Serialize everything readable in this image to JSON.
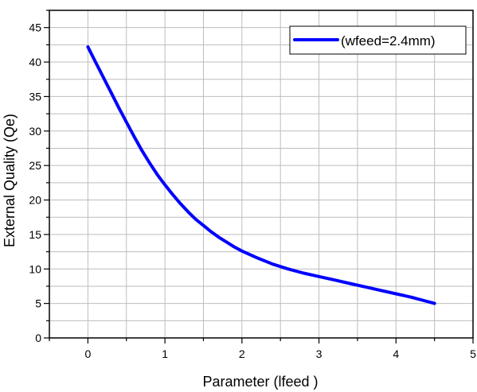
{
  "chart_data": {
    "type": "line",
    "title": "",
    "xlabel": "Parameter (lfeed )",
    "ylabel": "External Quality (Qe)",
    "xlim": [
      -0.5,
      5
    ],
    "ylim": [
      0,
      47.5
    ],
    "x_ticks": [
      0,
      1,
      2,
      3,
      4,
      5
    ],
    "y_ticks": [
      0,
      5,
      10,
      15,
      20,
      25,
      30,
      35,
      40,
      45
    ],
    "grid": true,
    "legend_position": "top-right",
    "series": [
      {
        "name": "(wfeed=2.4mm)",
        "color": "#0000ff",
        "x": [
          0,
          0.1,
          0.2,
          0.3,
          0.4,
          0.5,
          0.6,
          0.7,
          0.8,
          0.9,
          1.0,
          1.1,
          1.2,
          1.3,
          1.4,
          1.5,
          1.6,
          1.7,
          1.8,
          1.9,
          2.0,
          2.2,
          2.4,
          2.6,
          2.8,
          3.0,
          3.2,
          3.4,
          3.6,
          3.8,
          4.0,
          4.2,
          4.4,
          4.5
        ],
        "y": [
          42.2,
          40.0,
          37.8,
          35.6,
          33.4,
          31.3,
          29.2,
          27.2,
          25.4,
          23.7,
          22.2,
          20.8,
          19.5,
          18.3,
          17.2,
          16.3,
          15.4,
          14.6,
          13.9,
          13.2,
          12.6,
          11.6,
          10.7,
          10.0,
          9.4,
          8.9,
          8.4,
          7.9,
          7.4,
          6.9,
          6.4,
          5.9,
          5.3,
          5.0
        ]
      }
    ]
  }
}
